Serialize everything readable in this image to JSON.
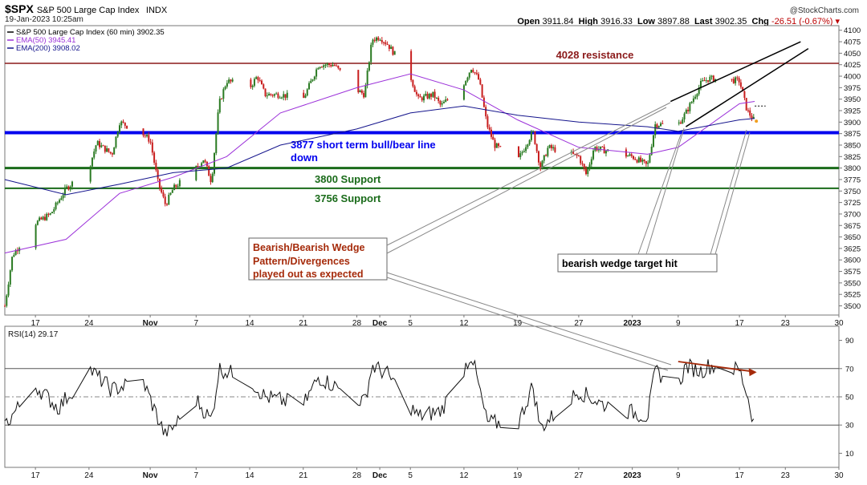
{
  "header": {
    "symbol": "$SPX",
    "name": "S&P 500 Large Cap Index",
    "exchange": "INDX",
    "date": "19-Jan-2023 10:25am",
    "watermark": "@StockCharts.com",
    "quote": {
      "open_label": "Open",
      "open": "3911.84",
      "high_label": "High",
      "high": "3916.33",
      "low_label": "Low",
      "low": "3897.88",
      "last_label": "Last",
      "last": "3902.35",
      "chg_label": "Chg",
      "chg": "-26.51 (-0.67%)"
    }
  },
  "legend": [
    {
      "text": "S&P 500 Large Cap Index (60 min) 3902.35",
      "color": "#000000"
    },
    {
      "text": "EMA(50) 3945.41",
      "color": "#9b30d9"
    },
    {
      "text": "EMA(200) 3908.02",
      "color": "#14148c"
    }
  ],
  "rsi_label": "RSI(14) 29.17",
  "colors": {
    "price": "#2a7a22",
    "ema50": "#9b30d9",
    "ema200": "#14148c",
    "resistance": "#8b1a1a",
    "bullbear": "#0000ee",
    "support": "#1a6b1a",
    "annot": "#a52a0a",
    "wedge": "#000000",
    "callout": "#888888"
  },
  "chart_data": [
    {
      "type": "line",
      "title": "S&P 500 Large Cap Index (60 min)",
      "ylim": [
        3480,
        4110
      ],
      "yticks": [
        3500,
        3525,
        3550,
        3575,
        3600,
        3625,
        3650,
        3675,
        3700,
        3725,
        3750,
        3775,
        3800,
        3825,
        3850,
        3875,
        3900,
        3925,
        3950,
        3975,
        4000,
        4025,
        4050,
        4075,
        4100
      ],
      "xticks": [
        "17",
        "24",
        "Nov",
        "7",
        "14",
        "21",
        "28",
        "Dec",
        "5",
        "12",
        "19",
        "27",
        "2023",
        "9",
        "17",
        "23",
        "30"
      ],
      "x_start": "2022-10-13",
      "x_end": "2023-01-30",
      "series": [
        {
          "name": "S&P 500 Large Cap Index (60 min)",
          "points": [
            [
              "2022-10-13",
              3500
            ],
            [
              "2022-10-14",
              3610
            ],
            [
              "2022-10-17",
              3680
            ],
            [
              "2022-10-19",
              3700
            ],
            [
              "2022-10-21",
              3755
            ],
            [
              "2022-10-24",
              3800
            ],
            [
              "2022-10-25",
              3855
            ],
            [
              "2022-10-27",
              3830
            ],
            [
              "2022-10-28",
              3900
            ],
            [
              "2022-10-31",
              3875
            ],
            [
              "2022-11-01",
              3860
            ],
            [
              "2022-11-02",
              3770
            ],
            [
              "2022-11-03",
              3720
            ],
            [
              "2022-11-04",
              3755
            ],
            [
              "2022-11-07",
              3800
            ],
            [
              "2022-11-08",
              3820
            ],
            [
              "2022-11-09",
              3770
            ],
            [
              "2022-11-10",
              3940
            ],
            [
              "2022-11-11",
              3990
            ],
            [
              "2022-11-14",
              3975
            ],
            [
              "2022-11-15",
              4000
            ],
            [
              "2022-11-16",
              3960
            ],
            [
              "2022-11-18",
              3960
            ],
            [
              "2022-11-21",
              3950
            ],
            [
              "2022-11-23",
              4025
            ],
            [
              "2022-11-25",
              4025
            ],
            [
              "2022-11-28",
              3970
            ],
            [
              "2022-11-29",
              3960
            ],
            [
              "2022-11-30",
              4080
            ],
            [
              "2022-12-01",
              4085
            ],
            [
              "2022-12-02",
              4070
            ],
            [
              "2022-12-05",
              4000
            ],
            [
              "2022-12-06",
              3950
            ],
            [
              "2022-12-08",
              3960
            ],
            [
              "2022-12-09",
              3935
            ],
            [
              "2022-12-12",
              3985
            ],
            [
              "2022-12-13",
              4020
            ],
            [
              "2022-12-14",
              3990
            ],
            [
              "2022-12-15",
              3895
            ],
            [
              "2022-12-16",
              3850
            ],
            [
              "2022-12-19",
              3815
            ],
            [
              "2022-12-21",
              3880
            ],
            [
              "2022-12-22",
              3800
            ],
            [
              "2022-12-23",
              3845
            ],
            [
              "2022-12-27",
              3825
            ],
            [
              "2022-12-28",
              3785
            ],
            [
              "2022-12-29",
              3845
            ],
            [
              "2022-12-30",
              3840
            ],
            [
              "2023-01-03",
              3825
            ],
            [
              "2023-01-05",
              3805
            ],
            [
              "2023-01-06",
              3895
            ],
            [
              "2023-01-09",
              3895
            ],
            [
              "2023-01-10",
              3920
            ],
            [
              "2023-01-12",
              3985
            ],
            [
              "2023-01-13",
              3995
            ],
            [
              "2023-01-17",
              3990
            ],
            [
              "2023-01-18",
              3925
            ],
            [
              "2023-01-19",
              3902
            ]
          ]
        },
        {
          "name": "EMA(50)",
          "points": [
            [
              "2022-10-13",
              3615
            ],
            [
              "2022-10-21",
              3645
            ],
            [
              "2022-10-28",
              3745
            ],
            [
              "2022-11-04",
              3780
            ],
            [
              "2022-11-11",
              3825
            ],
            [
              "2022-11-18",
              3920
            ],
            [
              "2022-11-28",
              3975
            ],
            [
              "2022-12-05",
              4005
            ],
            [
              "2022-12-12",
              3970
            ],
            [
              "2022-12-19",
              3905
            ],
            [
              "2022-12-27",
              3845
            ],
            [
              "2023-01-05",
              3830
            ],
            [
              "2023-01-09",
              3845
            ],
            [
              "2023-01-17",
              3940
            ],
            [
              "2023-01-19",
              3945
            ]
          ]
        },
        {
          "name": "EMA(200)",
          "points": [
            [
              "2022-10-13",
              3775
            ],
            [
              "2022-10-21",
              3742
            ],
            [
              "2022-10-28",
              3765
            ],
            [
              "2022-11-04",
              3790
            ],
            [
              "2022-11-11",
              3800
            ],
            [
              "2022-11-18",
              3850
            ],
            [
              "2022-11-28",
              3885
            ],
            [
              "2022-12-05",
              3920
            ],
            [
              "2022-12-12",
              3935
            ],
            [
              "2022-12-19",
              3915
            ],
            [
              "2022-12-27",
              3900
            ],
            [
              "2023-01-05",
              3890
            ],
            [
              "2023-01-09",
              3880
            ],
            [
              "2023-01-17",
              3905
            ],
            [
              "2023-01-19",
              3908
            ]
          ]
        }
      ],
      "hlines": [
        {
          "value": 4028,
          "label": "4028 resistance"
        },
        {
          "value": 3877,
          "label": "3877 short term bull/bear line down"
        },
        {
          "value": 3800,
          "label": "3800 Support"
        },
        {
          "value": 3756,
          "label": "3756 Support"
        }
      ],
      "annotations": [
        "Bearish/Bearish Wedge Pattern/Divergences played out as expected",
        "bearish wedge target hit"
      ]
    },
    {
      "type": "line",
      "title": "RSI(14)",
      "ylim": [
        0,
        100
      ],
      "yticks": [
        10,
        30,
        50,
        70,
        90
      ],
      "series": [
        {
          "name": "RSI(14)",
          "points": [
            [
              "2022-10-13",
              30
            ],
            [
              "2022-10-17",
              58
            ],
            [
              "2022-10-20",
              42
            ],
            [
              "2022-10-24",
              70
            ],
            [
              "2022-10-27",
              55
            ],
            [
              "2022-10-31",
              62
            ],
            [
              "2022-11-02",
              35
            ],
            [
              "2022-11-03",
              22
            ],
            [
              "2022-11-07",
              48
            ],
            [
              "2022-11-09",
              33
            ],
            [
              "2022-11-10",
              70
            ],
            [
              "2022-11-14",
              62
            ],
            [
              "2022-11-16",
              50
            ],
            [
              "2022-11-21",
              44
            ],
            [
              "2022-11-23",
              64
            ],
            [
              "2022-11-29",
              46
            ],
            [
              "2022-11-30",
              72
            ],
            [
              "2022-12-02",
              66
            ],
            [
              "2022-12-06",
              36
            ],
            [
              "2022-12-09",
              40
            ],
            [
              "2022-12-13",
              80
            ],
            [
              "2022-12-15",
              32
            ],
            [
              "2022-12-19",
              30
            ],
            [
              "2022-12-21",
              58
            ],
            [
              "2022-12-22",
              28
            ],
            [
              "2022-12-27",
              54
            ],
            [
              "2022-12-30",
              45
            ],
            [
              "2023-01-05",
              36
            ],
            [
              "2023-01-06",
              68
            ],
            [
              "2023-01-09",
              58
            ],
            [
              "2023-01-10",
              72
            ],
            [
              "2023-01-12",
              68
            ],
            [
              "2023-01-13",
              72
            ],
            [
              "2023-01-17",
              69
            ],
            [
              "2023-01-18",
              52
            ],
            [
              "2023-01-19",
              29
            ]
          ]
        }
      ],
      "hlines": [
        70,
        50,
        30
      ]
    }
  ]
}
